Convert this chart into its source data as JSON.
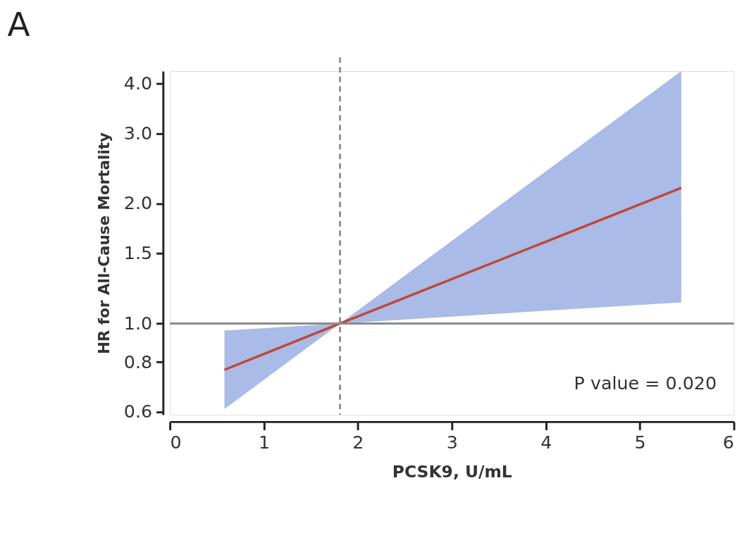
{
  "chart_data": {
    "type": "line",
    "title": "A",
    "xlabel": "PCSK9, U/mL",
    "ylabel": "HR for All-Cause Mortality",
    "x": [
      0.58,
      1.81,
      5.44
    ],
    "series": [
      {
        "color": "#c0453a",
        "values": [
          0.765,
          1.0,
          2.19
        ],
        "lower": [
          0.61,
          1.0,
          1.13
        ],
        "upper": [
          0.96,
          1.0,
          4.3
        ]
      }
    ],
    "xlim": [
      0,
      6
    ],
    "xticks": [
      0,
      1,
      2,
      3,
      4,
      5,
      6
    ],
    "ylim": [
      0.59,
      4.3
    ],
    "yticks": [
      {
        "value": 0.6,
        "label": "0.6"
      },
      {
        "value": 0.8,
        "label": "0.8"
      },
      {
        "value": 1.0,
        "label": "1.0"
      },
      {
        "value": 1.5,
        "label": "1.5"
      },
      {
        "value": 2.0,
        "label": "2.0"
      },
      {
        "value": 3.0,
        "label": "3.0"
      },
      {
        "value": 4.0,
        "label": "4.0"
      }
    ],
    "log": "y",
    "grid": false,
    "ref_lines": [
      {
        "axis": "y",
        "value": 1.0,
        "color": "#8a8a8a",
        "line_style": "solid"
      },
      {
        "axis": "x",
        "value": 1.81,
        "color": "#909090",
        "line_style": "dashed"
      }
    ],
    "annotations": [
      "P value = 0.020"
    ]
  }
}
